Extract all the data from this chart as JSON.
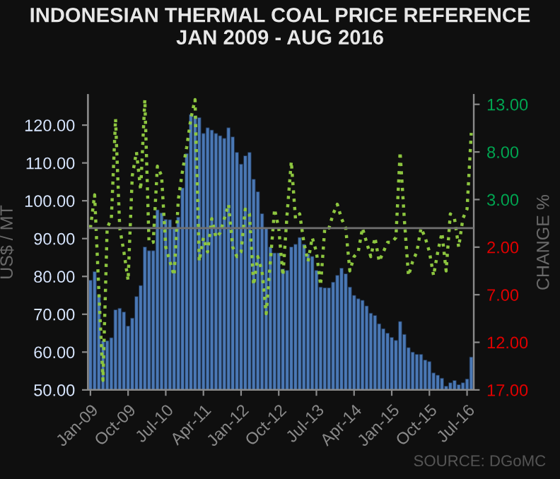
{
  "chart_data": {
    "type": "bar",
    "title": "INDONESIAN THERMAL COAL PRICE REFERENCE\nJAN 2009 - AUG 2016",
    "categories": [
      "Jan-09",
      null,
      null,
      null,
      null,
      null,
      null,
      null,
      null,
      "Oct-09",
      null,
      null,
      null,
      null,
      null,
      null,
      null,
      null,
      "Jul-10",
      null,
      null,
      null,
      null,
      null,
      null,
      null,
      null,
      "Apr-11",
      null,
      null,
      null,
      null,
      null,
      null,
      null,
      null,
      "Jan-12",
      null,
      null,
      null,
      null,
      null,
      null,
      null,
      null,
      "Oct-12",
      null,
      null,
      null,
      null,
      null,
      null,
      null,
      null,
      "Jul-13",
      null,
      null,
      null,
      null,
      null,
      null,
      null,
      null,
      "Apr-14",
      null,
      null,
      null,
      null,
      null,
      null,
      null,
      null,
      "Jan-15",
      null,
      null,
      null,
      null,
      null,
      null,
      null,
      null,
      "Oct-15",
      null,
      null,
      null,
      null,
      null,
      null,
      null,
      null,
      "Jul-16",
      null
    ],
    "series": [
      {
        "color": "#4a78b5",
        "values": [
          79.0,
          81.3,
          75.0,
          63.0,
          63.0,
          63.8,
          71.2,
          71.6,
          70.6,
          66.9,
          69.0,
          74.7,
          77.6,
          87.8,
          86.8,
          86.8,
          97.6,
          96.8,
          95.1,
          95.0,
          93.0,
          95.7,
          103.4,
          112.5,
          122.8,
          122.5,
          122.0,
          117.8,
          119.3,
          118.7,
          117.8,
          117.2,
          116.5,
          119.3,
          116.9,
          112.8,
          109.7,
          111.9,
          112.8,
          105.7,
          102.4,
          96.6,
          92.8,
          87.8,
          86.2,
          86.2,
          82.0,
          81.6,
          87.8,
          88.5,
          90.3,
          88.5,
          86.0,
          85.3,
          81.6,
          77.2,
          77.0,
          77.0,
          78.5,
          80.3,
          82.2,
          80.7,
          77.2,
          75.0,
          74.1,
          73.7,
          72.2,
          70.3,
          69.7,
          67.5,
          66.2,
          65.0,
          63.9,
          63.1,
          68.1,
          64.7,
          61.2,
          60.0,
          59.4,
          59.4,
          57.9,
          57.5,
          54.5,
          53.9,
          53.1,
          51.0,
          51.9,
          52.5,
          51.4,
          51.9,
          52.9,
          58.7
        ]
      },
      {
        "type": "line",
        "axis": "y2",
        "color": "#8dc63f",
        "line_style": "dotted",
        "values": [
          0,
          3.5,
          -6.5,
          -16,
          0,
          1,
          11.5,
          0,
          -2.5,
          -5.5,
          5.5,
          8,
          4,
          13.5,
          -1.5,
          -1.5,
          6.5,
          5.5,
          -2,
          -3.5,
          -5,
          3,
          6,
          8.5,
          11.5,
          13.5,
          -3.5,
          -1,
          -2.5,
          1,
          -1,
          -0.5,
          1,
          2.5,
          -2,
          -3,
          -2.5,
          2,
          1.5,
          -6,
          -3,
          -4.5,
          -9,
          -3.5,
          2,
          0,
          -5,
          1.5,
          7,
          1,
          1.5,
          -1.5,
          -3.5,
          -1,
          -2.5,
          -6,
          0,
          0,
          1.5,
          2.5,
          1,
          0,
          -4.5,
          -3,
          -2.5,
          0,
          -1.5,
          -3,
          -1,
          -3.5,
          -2.5,
          -1.5,
          -1.5,
          -1,
          8,
          1,
          -5,
          -3.5,
          -2.5,
          0,
          -1,
          -2.5,
          -5,
          -2.5,
          -0.5,
          -4.5,
          1.5,
          1,
          -2,
          1,
          2,
          10
        ]
      }
    ],
    "ylabel": "US$ / MT",
    "y2label": "CHANGE %",
    "ylim": [
      50,
      128
    ],
    "yticks": [
      {
        "value": 50,
        "label": "50.00"
      },
      {
        "value": 60,
        "label": "60.00"
      },
      {
        "value": 70,
        "label": "70.00"
      },
      {
        "value": 80,
        "label": "80.00"
      },
      {
        "value": 90,
        "label": "90.00"
      },
      {
        "value": 100,
        "label": "100.00"
      },
      {
        "value": 110,
        "label": "110.00"
      },
      {
        "value": 120,
        "label": "120.00"
      }
    ],
    "y2lim": [
      -17,
      14
    ],
    "y2ticks": [
      {
        "value": -17,
        "label": "17.00"
      },
      {
        "value": -12,
        "label": "12.00"
      },
      {
        "value": -7,
        "label": "7.00"
      },
      {
        "value": -2,
        "label": "2.00"
      },
      {
        "value": 3,
        "label": "3.00"
      },
      {
        "value": 8,
        "label": "8.00"
      },
      {
        "value": 13,
        "label": "13.00"
      }
    ],
    "ref_lines": [
      {
        "axis": "y2",
        "value": 0,
        "color": "#707070"
      }
    ],
    "annotations": [
      "SOURCE: DGoMC"
    ],
    "grid": false,
    "legend": false
  }
}
